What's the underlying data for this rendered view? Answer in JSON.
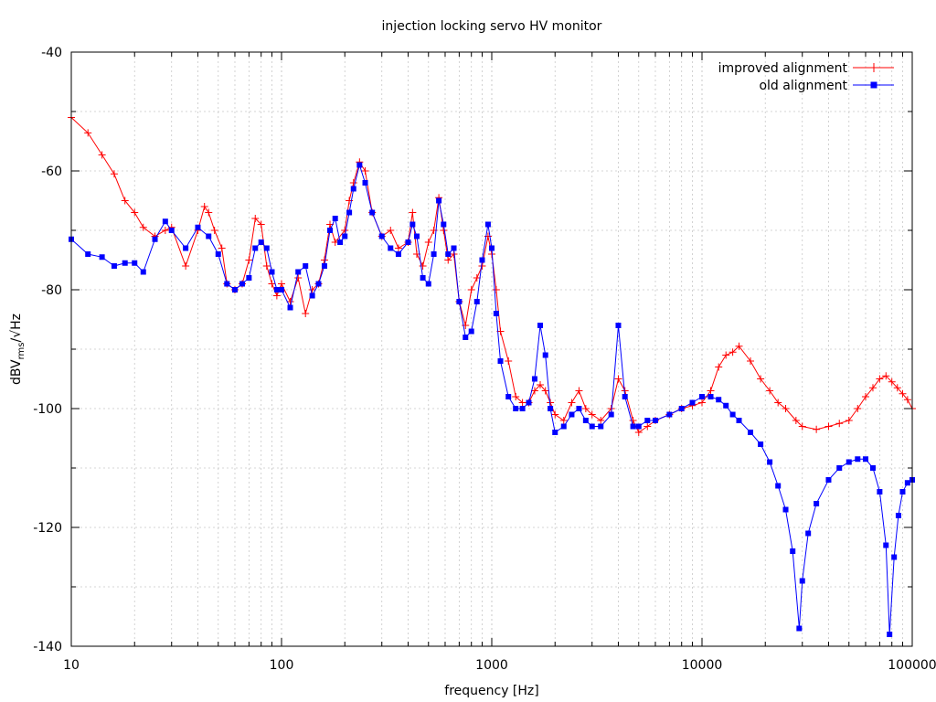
{
  "chart_data": {
    "type": "line",
    "title": "injection locking servo HV monitor",
    "xlabel": "frequency [Hz]",
    "ylabel": {
      "main": "dBV",
      "sub": "rms",
      "tail": "/√Hz"
    },
    "xscale": "log",
    "xlim": [
      10,
      100000
    ],
    "ylim": [
      -140,
      -40
    ],
    "grid": true,
    "legend_position": "top-right",
    "x_ticks": [
      10,
      100,
      1000,
      10000,
      100000
    ],
    "x_tick_labels": [
      "10",
      "100",
      "1000",
      "10000",
      "100000"
    ],
    "y_ticks": [
      -140,
      -120,
      -100,
      -80,
      -60,
      -40
    ],
    "y_tick_labels": [
      "-140",
      "-120",
      "-100",
      "-80",
      "-60",
      "-40"
    ],
    "series": [
      {
        "name": "improved alignment",
        "color": "#ff0000",
        "marker": "plus",
        "points": [
          [
            10,
            -51
          ],
          [
            12,
            -53.6
          ],
          [
            14,
            -57.3
          ],
          [
            16,
            -60.5
          ],
          [
            18,
            -65
          ],
          [
            20,
            -67
          ],
          [
            22,
            -69.5
          ],
          [
            25,
            -71
          ],
          [
            28,
            -70
          ],
          [
            30,
            -69.5
          ],
          [
            35,
            -76
          ],
          [
            40,
            -70
          ],
          [
            43,
            -66
          ],
          [
            45,
            -67
          ],
          [
            48,
            -70
          ],
          [
            52,
            -73
          ],
          [
            55,
            -79
          ],
          [
            60,
            -80
          ],
          [
            65,
            -79
          ],
          [
            70,
            -75
          ],
          [
            75,
            -68
          ],
          [
            80,
            -69
          ],
          [
            85,
            -76
          ],
          [
            90,
            -79
          ],
          [
            95,
            -81
          ],
          [
            100,
            -79
          ],
          [
            110,
            -82
          ],
          [
            120,
            -78
          ],
          [
            130,
            -84
          ],
          [
            140,
            -80
          ],
          [
            150,
            -79
          ],
          [
            160,
            -75
          ],
          [
            170,
            -69
          ],
          [
            180,
            -72
          ],
          [
            200,
            -70
          ],
          [
            210,
            -65
          ],
          [
            220,
            -62
          ],
          [
            235,
            -58.5
          ],
          [
            250,
            -60
          ],
          [
            270,
            -67
          ],
          [
            300,
            -71
          ],
          [
            330,
            -70
          ],
          [
            360,
            -73
          ],
          [
            400,
            -72
          ],
          [
            420,
            -67
          ],
          [
            440,
            -74
          ],
          [
            470,
            -76
          ],
          [
            500,
            -72
          ],
          [
            530,
            -70
          ],
          [
            560,
            -64.5
          ],
          [
            590,
            -70
          ],
          [
            620,
            -75
          ],
          [
            660,
            -74
          ],
          [
            700,
            -82
          ],
          [
            750,
            -86
          ],
          [
            800,
            -80
          ],
          [
            850,
            -78
          ],
          [
            900,
            -76
          ],
          [
            960,
            -71
          ],
          [
            1000,
            -74
          ],
          [
            1050,
            -80
          ],
          [
            1100,
            -87
          ],
          [
            1200,
            -92
          ],
          [
            1300,
            -98
          ],
          [
            1400,
            -99
          ],
          [
            1500,
            -99
          ],
          [
            1600,
            -97
          ],
          [
            1700,
            -96
          ],
          [
            1800,
            -97
          ],
          [
            1900,
            -99
          ],
          [
            2000,
            -101
          ],
          [
            2200,
            -102
          ],
          [
            2400,
            -99
          ],
          [
            2600,
            -97
          ],
          [
            2800,
            -100
          ],
          [
            3000,
            -101
          ],
          [
            3300,
            -102
          ],
          [
            3700,
            -100
          ],
          [
            4000,
            -95
          ],
          [
            4300,
            -97
          ],
          [
            4700,
            -102
          ],
          [
            5000,
            -104
          ],
          [
            5500,
            -103
          ],
          [
            6000,
            -102
          ],
          [
            7000,
            -101
          ],
          [
            8000,
            -100
          ],
          [
            9000,
            -99.5
          ],
          [
            10000,
            -99
          ],
          [
            11000,
            -97
          ],
          [
            12000,
            -93
          ],
          [
            13000,
            -91
          ],
          [
            14000,
            -90.5
          ],
          [
            15000,
            -89.5
          ],
          [
            17000,
            -92
          ],
          [
            19000,
            -95
          ],
          [
            21000,
            -97
          ],
          [
            23000,
            -99
          ],
          [
            25000,
            -100
          ],
          [
            28000,
            -102
          ],
          [
            30000,
            -103
          ],
          [
            35000,
            -103.5
          ],
          [
            40000,
            -103
          ],
          [
            45000,
            -102.5
          ],
          [
            50000,
            -102
          ],
          [
            55000,
            -100
          ],
          [
            60000,
            -98
          ],
          [
            65000,
            -96.5
          ],
          [
            70000,
            -95
          ],
          [
            75000,
            -94.5
          ],
          [
            80000,
            -95.5
          ],
          [
            85000,
            -96.5
          ],
          [
            90000,
            -97.5
          ],
          [
            95000,
            -98.5
          ],
          [
            100000,
            -100
          ]
        ]
      },
      {
        "name": "old alignment",
        "color": "#0000ff",
        "marker": "filled-square",
        "points": [
          [
            10,
            -71.5
          ],
          [
            12,
            -74
          ],
          [
            14,
            -74.5
          ],
          [
            16,
            -76
          ],
          [
            18,
            -75.5
          ],
          [
            20,
            -75.5
          ],
          [
            22,
            -77
          ],
          [
            25,
            -71.5
          ],
          [
            28,
            -68.5
          ],
          [
            30,
            -70
          ],
          [
            35,
            -73
          ],
          [
            40,
            -69.5
          ],
          [
            45,
            -71
          ],
          [
            50,
            -74
          ],
          [
            55,
            -79
          ],
          [
            60,
            -80
          ],
          [
            65,
            -79
          ],
          [
            70,
            -78
          ],
          [
            75,
            -73
          ],
          [
            80,
            -72
          ],
          [
            85,
            -73
          ],
          [
            90,
            -77
          ],
          [
            95,
            -80
          ],
          [
            100,
            -80
          ],
          [
            110,
            -83
          ],
          [
            120,
            -77
          ],
          [
            130,
            -76
          ],
          [
            140,
            -81
          ],
          [
            150,
            -79
          ],
          [
            160,
            -76
          ],
          [
            170,
            -70
          ],
          [
            180,
            -68
          ],
          [
            190,
            -72
          ],
          [
            200,
            -71
          ],
          [
            210,
            -67
          ],
          [
            220,
            -63
          ],
          [
            235,
            -59
          ],
          [
            250,
            -62
          ],
          [
            270,
            -67
          ],
          [
            300,
            -71
          ],
          [
            330,
            -73
          ],
          [
            360,
            -74
          ],
          [
            400,
            -72
          ],
          [
            420,
            -69
          ],
          [
            440,
            -71
          ],
          [
            470,
            -78
          ],
          [
            500,
            -79
          ],
          [
            530,
            -74
          ],
          [
            560,
            -65
          ],
          [
            590,
            -69
          ],
          [
            620,
            -74
          ],
          [
            660,
            -73
          ],
          [
            700,
            -82
          ],
          [
            750,
            -88
          ],
          [
            800,
            -87
          ],
          [
            850,
            -82
          ],
          [
            900,
            -75
          ],
          [
            960,
            -69
          ],
          [
            1000,
            -73
          ],
          [
            1050,
            -84
          ],
          [
            1100,
            -92
          ],
          [
            1200,
            -98
          ],
          [
            1300,
            -100
          ],
          [
            1400,
            -100
          ],
          [
            1500,
            -99
          ],
          [
            1600,
            -95
          ],
          [
            1700,
            -86
          ],
          [
            1800,
            -91
          ],
          [
            1900,
            -100
          ],
          [
            2000,
            -104
          ],
          [
            2200,
            -103
          ],
          [
            2400,
            -101
          ],
          [
            2600,
            -100
          ],
          [
            2800,
            -102
          ],
          [
            3000,
            -103
          ],
          [
            3300,
            -103
          ],
          [
            3700,
            -101
          ],
          [
            4000,
            -86
          ],
          [
            4300,
            -98
          ],
          [
            4700,
            -103
          ],
          [
            5000,
            -103
          ],
          [
            5500,
            -102
          ],
          [
            6000,
            -102
          ],
          [
            7000,
            -101
          ],
          [
            8000,
            -100
          ],
          [
            9000,
            -99
          ],
          [
            10000,
            -98
          ],
          [
            11000,
            -98
          ],
          [
            12000,
            -98.5
          ],
          [
            13000,
            -99.5
          ],
          [
            14000,
            -101
          ],
          [
            15000,
            -102
          ],
          [
            17000,
            -104
          ],
          [
            19000,
            -106
          ],
          [
            21000,
            -109
          ],
          [
            23000,
            -113
          ],
          [
            25000,
            -117
          ],
          [
            27000,
            -124
          ],
          [
            29000,
            -137
          ],
          [
            30000,
            -129
          ],
          [
            32000,
            -121
          ],
          [
            35000,
            -116
          ],
          [
            40000,
            -112
          ],
          [
            45000,
            -110
          ],
          [
            50000,
            -109
          ],
          [
            55000,
            -108.5
          ],
          [
            60000,
            -108.5
          ],
          [
            65000,
            -110
          ],
          [
            70000,
            -114
          ],
          [
            75000,
            -123
          ],
          [
            78000,
            -138
          ],
          [
            82000,
            -125
          ],
          [
            86000,
            -118
          ],
          [
            90000,
            -114
          ],
          [
            95000,
            -112.5
          ],
          [
            100000,
            -112
          ]
        ]
      }
    ]
  }
}
